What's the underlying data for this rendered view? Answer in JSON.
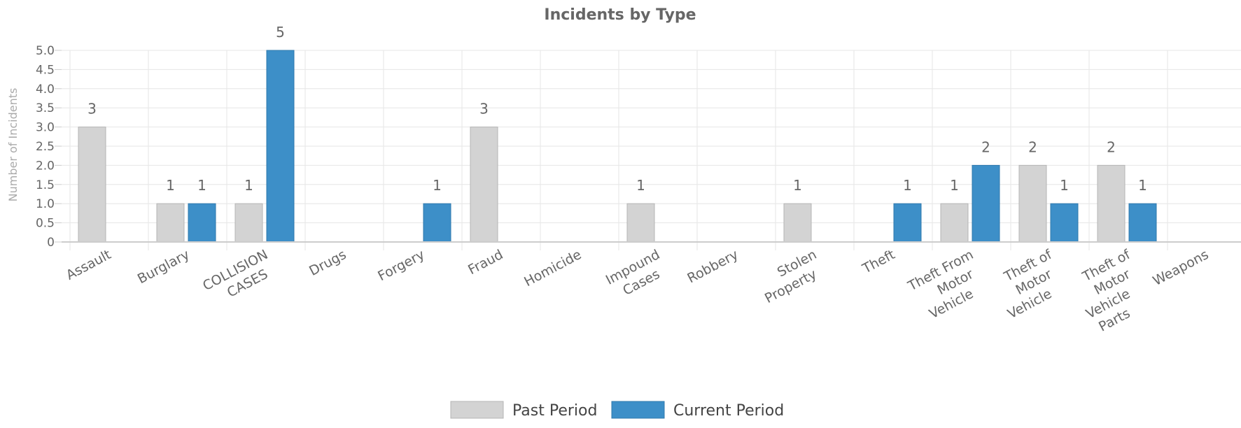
{
  "chart_data": {
    "type": "bar",
    "title": "Incidents by Type",
    "ylabel": "Number of Incidents",
    "ylim": [
      0,
      5
    ],
    "yticks": [
      "0",
      "0.5",
      "1.0",
      "1.5",
      "2.0",
      "2.5",
      "3.0",
      "3.5",
      "4.0",
      "4.5",
      "5.0"
    ],
    "categories": [
      [
        "Assault"
      ],
      [
        "Burglary"
      ],
      [
        "COLLISION",
        "CASES"
      ],
      [
        "Drugs"
      ],
      [
        "Forgery"
      ],
      [
        "Fraud"
      ],
      [
        "Homicide"
      ],
      [
        "Impound",
        "Cases"
      ],
      [
        "Robbery"
      ],
      [
        "Stolen",
        "Property"
      ],
      [
        "Theft"
      ],
      [
        "Theft From",
        "Motor",
        "Vehicle"
      ],
      [
        "Theft of",
        "Motor",
        "Vehicle"
      ],
      [
        "Theft of",
        "Motor",
        "Vehicle",
        "Parts"
      ],
      [
        "Weapons"
      ]
    ],
    "series": [
      {
        "name": "Past Period",
        "color": "#d3d3d3",
        "stroke": "#b5b5b5",
        "values": [
          3,
          1,
          1,
          0,
          0,
          3,
          0,
          1,
          0,
          1,
          0,
          1,
          2,
          2,
          0
        ]
      },
      {
        "name": "Current Period",
        "color": "#3d8fc8",
        "stroke": "#2f78ad",
        "values": [
          0,
          1,
          5,
          0,
          1,
          0,
          0,
          0,
          0,
          0,
          1,
          2,
          1,
          1,
          0
        ]
      }
    ],
    "grid": true,
    "legend": "bottom-center"
  }
}
